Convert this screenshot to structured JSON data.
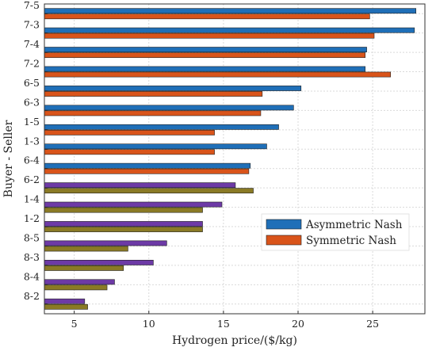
{
  "chart_data": {
    "type": "bar",
    "orientation": "horizontal",
    "xlabel": "Hydrogen price/($/kg)",
    "ylabel": "Buyer - Seller",
    "xlim": [
      3,
      28.5
    ],
    "xticks": [
      5,
      10,
      15,
      20,
      25
    ],
    "grid": true,
    "legend_position": "lower-right",
    "categories": [
      "7-5",
      "7-3",
      "7-4",
      "7-2",
      "6-5",
      "6-3",
      "1-5",
      "1-3",
      "6-4",
      "6-2",
      "1-4",
      "1-2",
      "8-5",
      "8-3",
      "8-4",
      "8-2"
    ],
    "series": [
      {
        "name": "Asymmetric Nash",
        "color": "#1f6fb8",
        "values": [
          27.9,
          27.8,
          24.6,
          24.5,
          20.2,
          19.7,
          18.7,
          17.9,
          16.8,
          15.8,
          14.9,
          13.6,
          11.2,
          10.3,
          7.7,
          5.7
        ]
      },
      {
        "name": "Symmetric Nash",
        "color": "#d9541a",
        "values": [
          24.8,
          25.1,
          24.5,
          26.2,
          17.6,
          17.5,
          14.4,
          14.4,
          16.7,
          17.0,
          13.6,
          13.6,
          8.6,
          8.3,
          7.2,
          5.9
        ]
      }
    ],
    "alt_colors": {
      "asymmetric": "#6d3aa6",
      "symmetric": "#8a7a25"
    }
  }
}
